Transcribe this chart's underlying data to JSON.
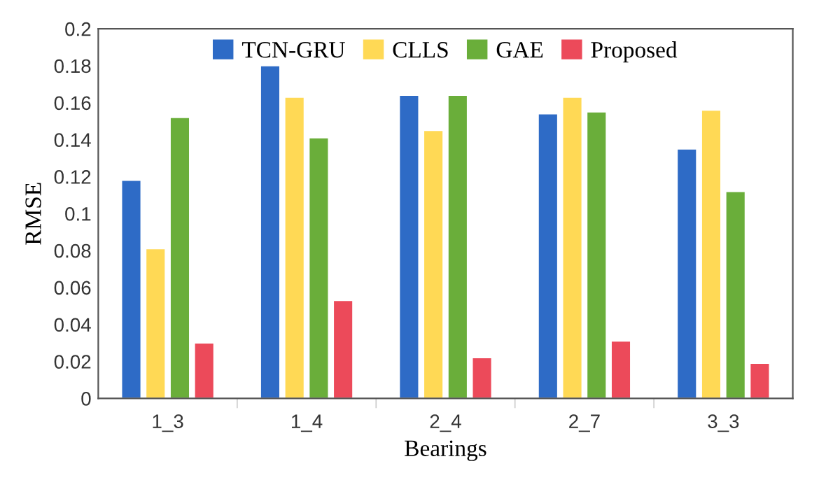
{
  "chart_data": {
    "type": "bar",
    "xlabel": "Bearings",
    "ylabel": "RMSE",
    "categories": [
      "1_3",
      "1_4",
      "2_4",
      "2_7",
      "3_3"
    ],
    "series": [
      {
        "name": "TCN-GRU",
        "color": "#2e6bc6",
        "values": [
          0.118,
          0.18,
          0.164,
          0.154,
          0.135
        ]
      },
      {
        "name": "CLLS",
        "color": "#ffd955",
        "values": [
          0.081,
          0.163,
          0.145,
          0.163,
          0.156
        ]
      },
      {
        "name": "GAE",
        "color": "#6aae3a",
        "values": [
          0.152,
          0.141,
          0.164,
          0.155,
          0.112
        ]
      },
      {
        "name": "Proposed",
        "color": "#ec4a5a",
        "values": [
          0.03,
          0.053,
          0.022,
          0.031,
          0.019
        ]
      }
    ],
    "ylim": [
      0,
      0.2
    ],
    "yticks": [
      0,
      0.02,
      0.04,
      0.06,
      0.08,
      {
        "value": 0.1,
        "label": "0.1"
      },
      0.12,
      0.14,
      0.16,
      0.18,
      {
        "value": 0.2,
        "label": "0.2"
      }
    ],
    "grid": false,
    "legend": "top"
  }
}
